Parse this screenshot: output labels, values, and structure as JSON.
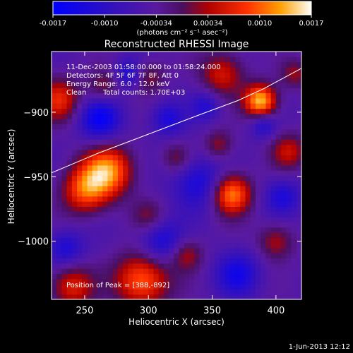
{
  "colorbar": {
    "ticks": [
      "-0.0017",
      "-0.0010",
      "-0.00034",
      "0.00034",
      "0.0010",
      "0.0017"
    ],
    "unit_label": "(photons cm⁻² s⁻¹ asec⁻²)"
  },
  "chart_data": {
    "type": "heatmap",
    "title": "Reconstructed RHESSI Image",
    "xlabel": "Heliocentric X (arcsec)",
    "ylabel": "Heliocentric Y (arcsec)",
    "xlim": [
      224,
      420
    ],
    "ylim": [
      -1045,
      -853
    ],
    "x_ticks": [
      250,
      300,
      350,
      400
    ],
    "y_ticks": [
      -900,
      -950,
      -1000
    ],
    "value_range": [
      -0.0017,
      0.0017
    ],
    "annotations": [
      "11-Dec-2003 01:58:00.000 to 01:58:24.000",
      "Detectors: 4F 5F 6F 7F 8F, Att 0",
      "Energy Range: 6.0 - 12.0 keV",
      "Clean",
      "Total counts: 1.70E+03"
    ],
    "peak_label": "Position of Peak = [388,-892]",
    "peak": {
      "x": 388,
      "y": -892
    },
    "limb": {
      "x": [
        224,
        260,
        300,
        340,
        370,
        390,
        420
      ],
      "y": [
        -947,
        -932,
        -917,
        -902,
        -891,
        -882,
        -866
      ]
    },
    "blobs": [
      {
        "x": 388,
        "y": -891,
        "sigma": 9,
        "v": 0.0019
      },
      {
        "x": 365,
        "y": -963,
        "sigma": 11,
        "v": 0.0017
      },
      {
        "x": 268,
        "y": -945,
        "sigma": 14,
        "v": 0.0016
      },
      {
        "x": 250,
        "y": -960,
        "sigma": 13,
        "v": 0.0013
      },
      {
        "x": 295,
        "y": -1030,
        "sigma": 15,
        "v": 0.0015
      },
      {
        "x": 240,
        "y": -1035,
        "sigma": 12,
        "v": 0.0011
      },
      {
        "x": 330,
        "y": -1010,
        "sigma": 9,
        "v": 0.0008
      },
      {
        "x": 230,
        "y": -890,
        "sigma": 12,
        "v": 0.0011
      },
      {
        "x": 358,
        "y": -870,
        "sigma": 12,
        "v": 0.001
      },
      {
        "x": 300,
        "y": -872,
        "sigma": 9,
        "v": 0.0007
      },
      {
        "x": 410,
        "y": -930,
        "sigma": 10,
        "v": 0.0009
      },
      {
        "x": 400,
        "y": -1000,
        "sigma": 10,
        "v": 0.0008
      },
      {
        "x": 322,
        "y": -935,
        "sigma": 8,
        "v": 0.0006
      },
      {
        "x": 355,
        "y": -925,
        "sigma": 8,
        "v": 0.0007
      },
      {
        "x": 300,
        "y": -980,
        "sigma": 9,
        "v": 0.0006
      },
      {
        "x": 265,
        "y": -880,
        "sigma": 9,
        "v": 0.0007
      },
      {
        "x": 415,
        "y": -870,
        "sigma": 8,
        "v": 0.0007
      },
      {
        "x": 262,
        "y": -905,
        "sigma": 12,
        "v": -0.0011
      },
      {
        "x": 340,
        "y": -955,
        "sigma": 14,
        "v": -0.0009
      },
      {
        "x": 310,
        "y": -1000,
        "sigma": 12,
        "v": -0.0009
      },
      {
        "x": 285,
        "y": -870,
        "sigma": 8,
        "v": -0.0008
      },
      {
        "x": 315,
        "y": -905,
        "sigma": 9,
        "v": -0.0008
      },
      {
        "x": 405,
        "y": -965,
        "sigma": 10,
        "v": -0.0008
      },
      {
        "x": 370,
        "y": -1025,
        "sigma": 12,
        "v": -0.0009
      },
      {
        "x": 235,
        "y": -1005,
        "sigma": 10,
        "v": -0.0008
      },
      {
        "x": 390,
        "y": -910,
        "sigma": 7,
        "v": -0.0007
      },
      {
        "x": 345,
        "y": -895,
        "sigma": 8,
        "v": -0.0007
      }
    ]
  },
  "footer": {
    "timestamp": "1-Jun-2013 12:12"
  }
}
